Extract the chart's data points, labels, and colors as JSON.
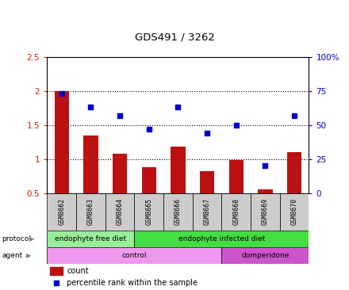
{
  "title": "GDS491 / 3262",
  "samples": [
    "GSM8662",
    "GSM8663",
    "GSM8664",
    "GSM8665",
    "GSM8666",
    "GSM8667",
    "GSM8668",
    "GSM8669",
    "GSM8670"
  ],
  "count_values": [
    2.0,
    1.35,
    1.08,
    0.88,
    1.18,
    0.82,
    0.98,
    0.55,
    1.1
  ],
  "percentile_values": [
    73,
    63,
    57,
    47,
    63,
    44,
    50,
    20,
    57
  ],
  "ylim_left": [
    0.5,
    2.5
  ],
  "ylim_right": [
    0,
    100
  ],
  "yticks_left": [
    0.5,
    1.0,
    1.5,
    2.0,
    2.5
  ],
  "ytick_labels_left": [
    "0.5",
    "1",
    "1.5",
    "2",
    "2.5"
  ],
  "yticks_right": [
    0,
    25,
    50,
    75,
    100
  ],
  "ytick_labels_right": [
    "0",
    "25",
    "50",
    "75",
    "100%"
  ],
  "bar_color": "#bb1111",
  "dot_color": "#0000cc",
  "protocol_groups": [
    {
      "label": "endophyte free diet",
      "start": 0,
      "end": 3,
      "color": "#99ee99"
    },
    {
      "label": "endophyte infected diet",
      "start": 3,
      "end": 9,
      "color": "#44dd44"
    }
  ],
  "agent_groups": [
    {
      "label": "control",
      "start": 0,
      "end": 6,
      "color": "#ee99ee"
    },
    {
      "label": "domperidone",
      "start": 6,
      "end": 9,
      "color": "#cc55cc"
    }
  ],
  "protocol_label": "protocol",
  "agent_label": "agent",
  "legend_count": "count",
  "legend_percentile": "percentile rank within the sample",
  "bar_width": 0.5,
  "dot_size": 18,
  "color_left": "#cc2200",
  "color_right": "#0000cc",
  "sample_bg": "#cccccc",
  "row_border": "#888888"
}
